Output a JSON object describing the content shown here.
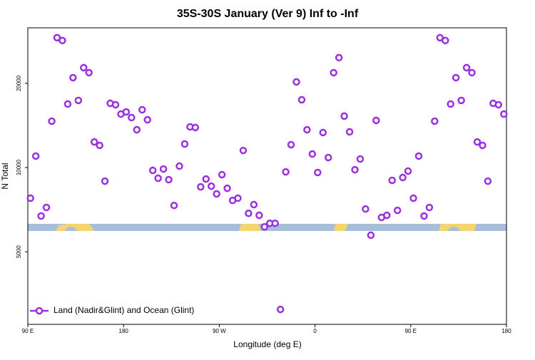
{
  "chart_data": {
    "type": "scatter",
    "title": "35S-30S January (Ver 9)   Inf to -Inf",
    "x_label": "Longitude (deg E)",
    "y_label": "N Total",
    "ylog": true,
    "xlim": [
      90,
      540
    ],
    "ylim": [
      2750,
      31600
    ],
    "xticks": [
      {
        "value": 90,
        "label": "90 E"
      },
      {
        "value": 180,
        "label": "180"
      },
      {
        "value": 270,
        "label": "90 W"
      },
      {
        "value": 360,
        "label": "0"
      },
      {
        "value": 450,
        "label": "90 E"
      },
      {
        "value": 540,
        "label": "180"
      }
    ],
    "yticks": [
      5000,
      10000,
      20000
    ],
    "legend": "bottom-left",
    "series": [
      {
        "name": "Land (Nadir&Glint) and Ocean (Glint)",
        "color": "#9b30e0",
        "x": [
          92.5,
          97.5,
          102.5,
          107.5,
          112.5,
          117.5,
          122.5,
          127.5,
          132.5,
          137.5,
          142.5,
          147.5,
          152.5,
          157.5,
          162.5,
          167.5,
          172.5,
          177.5,
          182.5,
          187.5,
          192.5,
          197.5,
          202.5,
          207.5,
          212.5,
          217.5,
          222.5,
          227.5,
          232.5,
          237.5,
          242.5,
          247.5,
          252.5,
          257.5,
          262.5,
          267.5,
          272.5,
          277.5,
          282.5,
          287.5,
          292.5,
          297.5,
          302.5,
          307.5,
          312.5,
          317.5,
          322.5,
          327.5,
          332.5,
          337.5,
          342.5,
          347.5,
          352.5,
          357.5,
          362.5,
          367.5,
          372.5,
          377.5,
          382.5,
          387.5,
          392.5,
          397.5,
          402.5,
          407.5,
          412.5,
          417.5,
          422.5,
          427.5,
          432.5,
          437.5,
          442.5,
          447.5,
          452.5,
          457.5,
          462.5,
          467.5,
          472.5,
          477.5,
          482.5,
          487.5,
          492.5,
          497.5,
          502.5,
          507.5,
          512.5,
          517.5,
          522.5,
          527.5,
          532.5,
          537.5
        ],
        "values": [
          7770,
          10990,
          6710,
          7200,
          14650,
          29130,
          28460,
          16870,
          20960,
          17380,
          22760,
          21840,
          12350,
          12000,
          8940,
          16970,
          16770,
          15530,
          15810,
          15090,
          13650,
          16090,
          14820,
          9770,
          9160,
          9880,
          9050,
          7320,
          10120,
          12140,
          13980,
          13900,
          8530,
          9100,
          8580,
          8050,
          9430,
          8430,
          7630,
          7770,
          11510,
          6860,
          7370,
          6750,
          6140,
          6320,
          6320,
          3110,
          9650,
          12070,
          20240,
          17470,
          13650,
          11180,
          9600,
          13340,
          10860,
          21840,
          24720,
          15270,
          13420,
          9820,
          10730,
          7110,
          5730,
          14740,
          6630,
          6750,
          9000,
          7030,
          9210,
          9710,
          7770,
          10990,
          6710,
          7200,
          14650,
          29130,
          28460,
          16870,
          20960,
          17380,
          22760,
          21840,
          12350,
          12000,
          8940,
          16970,
          16770,
          15530
        ]
      }
    ]
  }
}
